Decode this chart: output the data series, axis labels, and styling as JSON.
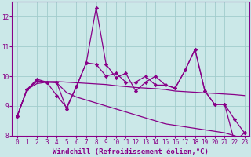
{
  "xlabel": "Windchill (Refroidissement éolien,°C)",
  "background_color": "#cbe8e8",
  "grid_color": "#a0cccc",
  "line_color": "#880088",
  "x": [
    0,
    1,
    2,
    3,
    4,
    5,
    6,
    7,
    8,
    9,
    10,
    11,
    12,
    13,
    14,
    15,
    16,
    17,
    18,
    19,
    20,
    21,
    22,
    23
  ],
  "line_jagged1": [
    8.65,
    9.55,
    9.9,
    9.8,
    9.8,
    8.9,
    9.65,
    10.45,
    10.4,
    10.0,
    10.1,
    9.8,
    9.8,
    10.0,
    9.7,
    9.7,
    9.6,
    10.2,
    10.9,
    9.5,
    9.05,
    9.05,
    8.55,
    8.1
  ],
  "line_spike": [
    8.65,
    9.55,
    9.85,
    9.8,
    9.35,
    8.95,
    9.65,
    10.45,
    12.3,
    10.4,
    9.95,
    10.1,
    9.5,
    9.8,
    10.0,
    9.7,
    9.6,
    10.2,
    10.9,
    9.5,
    9.05,
    9.05,
    7.8,
    8.1
  ],
  "line_flat": [
    8.65,
    9.55,
    9.82,
    9.82,
    9.82,
    9.8,
    9.78,
    9.76,
    9.74,
    9.72,
    9.68,
    9.65,
    9.62,
    9.6,
    9.58,
    9.55,
    9.5,
    9.48,
    9.46,
    9.44,
    9.42,
    9.4,
    9.38,
    9.35
  ],
  "line_decline": [
    8.65,
    9.55,
    9.75,
    9.8,
    9.78,
    9.45,
    9.3,
    9.2,
    9.1,
    9.0,
    8.9,
    8.8,
    8.7,
    8.6,
    8.5,
    8.4,
    8.35,
    8.3,
    8.25,
    8.2,
    8.15,
    8.1,
    8.0,
    7.9
  ],
  "ylim": [
    8.0,
    12.5
  ],
  "yticks": [
    8,
    9,
    10,
    11,
    12
  ],
  "tick_fontsize": 5.5,
  "label_fontsize": 6.5
}
